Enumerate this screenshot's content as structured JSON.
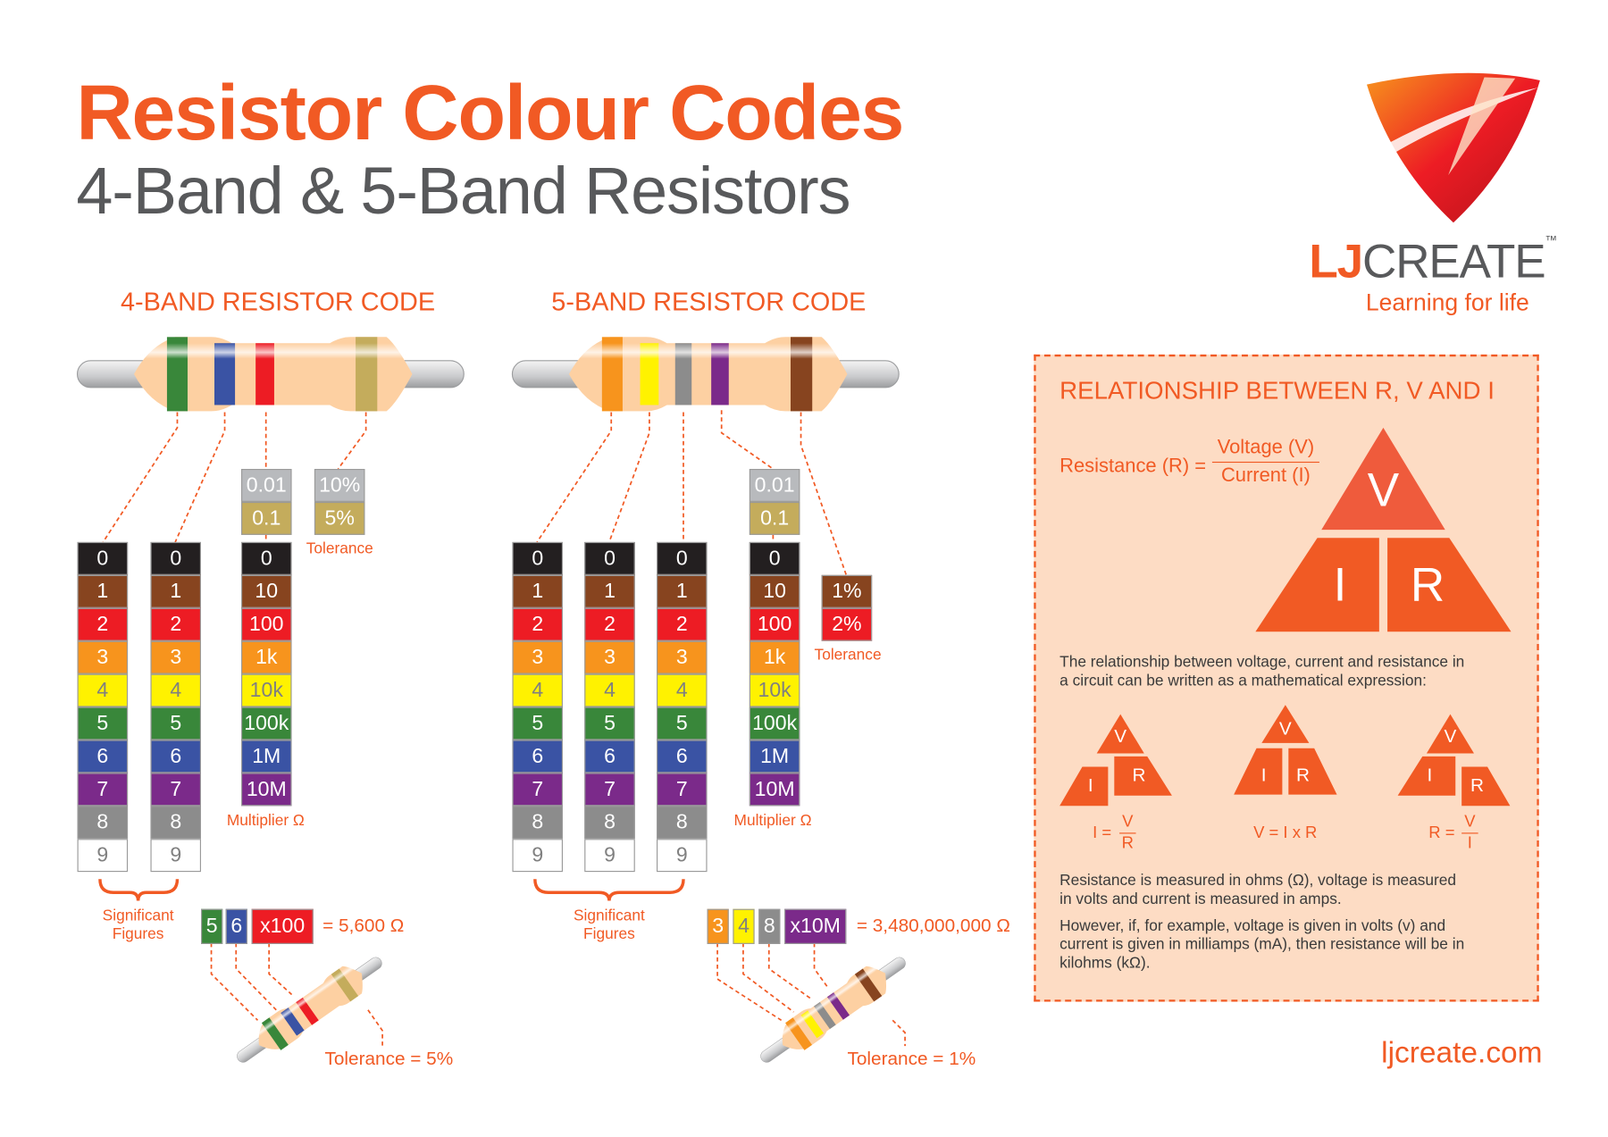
{
  "header": {
    "title": "Resistor Colour Codes",
    "subtitle": "4-Band & 5-Band Resistors"
  },
  "brand": {
    "name_lj": "LJ",
    "name_create": "CREATE",
    "trademark": "™",
    "tagline": "Learning for life",
    "website": "ljcreate.com",
    "accent_color": "#f15a24"
  },
  "colors": {
    "black": {
      "hex": "#231f20",
      "text": "#ffffff"
    },
    "brown": {
      "hex": "#87441f",
      "text": "#ffffff"
    },
    "red": {
      "hex": "#ed1c24",
      "text": "#ffffff"
    },
    "orange": {
      "hex": "#f7941d",
      "text": "#ffffff"
    },
    "yellow": {
      "hex": "#fff200",
      "text": "#808080"
    },
    "green": {
      "hex": "#39873a",
      "text": "#ffffff"
    },
    "blue": {
      "hex": "#3a53a4",
      "text": "#ffffff"
    },
    "violet": {
      "hex": "#7b2a8a",
      "text": "#ffffff"
    },
    "grey": {
      "hex": "#8c8c8c",
      "text": "#ffffff"
    },
    "white": {
      "hex": "#ffffff",
      "text": "#808080"
    },
    "gold": {
      "hex": "#c4ac5c",
      "text": "#ffffff"
    },
    "silver": {
      "hex": "#b8babd",
      "text": "#ffffff"
    }
  },
  "digit_colors": [
    "black",
    "brown",
    "red",
    "orange",
    "yellow",
    "green",
    "blue",
    "violet",
    "grey",
    "white"
  ],
  "digits": [
    "0",
    "1",
    "2",
    "3",
    "4",
    "5",
    "6",
    "7",
    "8",
    "9"
  ],
  "multipliers": [
    "0",
    "10",
    "100",
    "1k",
    "10k",
    "100k",
    "1M",
    "10M"
  ],
  "sub_multipliers": [
    {
      "color": "silver",
      "value": "0.01"
    },
    {
      "color": "gold",
      "value": "0.1"
    }
  ],
  "four_band": {
    "heading": "4-BAND RESISTOR CODE",
    "resistor_bands": [
      "green",
      "blue",
      "red",
      "gold"
    ],
    "tolerance": [
      {
        "color": "silver",
        "value": "10%"
      },
      {
        "color": "gold",
        "value": "5%"
      }
    ],
    "tolerance_label": "Tolerance",
    "multiplier_label": "Multiplier Ω",
    "significant_label_1": "Significant",
    "significant_label_2": "Figures",
    "example": {
      "bands": [
        {
          "color": "green",
          "value": "5"
        },
        {
          "color": "blue",
          "value": "6"
        },
        {
          "color": "red",
          "value": "x100"
        }
      ],
      "result": "= 5,600 Ω",
      "tolerance": "Tolerance = 5%"
    }
  },
  "five_band": {
    "heading": "5-BAND RESISTOR CODE",
    "resistor_bands": [
      "orange",
      "yellow",
      "grey",
      "violet",
      "brown"
    ],
    "tolerance": [
      {
        "color": "brown",
        "value": "1%"
      },
      {
        "color": "red",
        "value": "2%"
      }
    ],
    "tolerance_label": "Tolerance",
    "multiplier_label": "Multiplier Ω",
    "significant_label_1": "Significant",
    "significant_label_2": "Figures",
    "example": {
      "bands": [
        {
          "color": "orange",
          "value": "3"
        },
        {
          "color": "yellow",
          "value": "4"
        },
        {
          "color": "grey",
          "value": "8"
        },
        {
          "color": "violet",
          "value": "x10M"
        }
      ],
      "result": "= 3,480,000,000 Ω",
      "tolerance": "Tolerance = 1%"
    }
  },
  "relationship": {
    "heading": "RELATIONSHIP BETWEEN R, V AND I",
    "formula_lhs": "Resistance (R) =",
    "formula_num": "Voltage (V)",
    "formula_den": "Current (I)",
    "triangle": {
      "top": "V",
      "left": "I",
      "right": "R"
    },
    "intro": "The relationship between voltage, current and resistance in a circuit can be written as a mathematical expression:",
    "formulas": [
      {
        "lhs": "I =",
        "num": "V",
        "den": "R"
      },
      {
        "text": "V = I x R"
      },
      {
        "lhs": "R =",
        "num": "V",
        "den": "I"
      }
    ],
    "note1": "Resistance is measured in ohms (Ω), voltage is measured in volts and current is measured in amps.",
    "note2": "However, if, for example, voltage is given in volts (v) and current is given in milliamps (mA), then resistance will be in kilohms (kΩ)."
  }
}
